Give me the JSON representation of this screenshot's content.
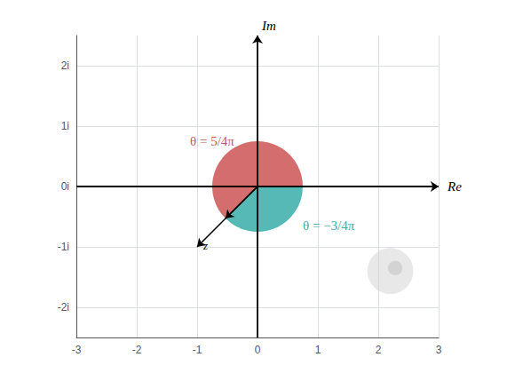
{
  "chart_data": {
    "type": "complex_plane",
    "xlim": [
      -3,
      3
    ],
    "ylim": [
      -2.5,
      2.5
    ],
    "xticks": [
      -3,
      -2,
      -1,
      0,
      1,
      2,
      3
    ],
    "yticks": [
      {
        "value": -2,
        "label": "-2i"
      },
      {
        "value": -1,
        "label": "-1i"
      },
      {
        "value": 0,
        "label": "0i"
      },
      {
        "value": 1,
        "label": "1i"
      },
      {
        "value": 2,
        "label": "2i"
      }
    ],
    "xlabel": "Re",
    "ylabel": "Im",
    "grid": true,
    "sectors": [
      {
        "center": [
          0,
          0
        ],
        "radius": 0.75,
        "theta1": 0,
        "theta2": 225,
        "color": "#cc5555",
        "label": "θ = 5/4π",
        "label_pos": [
          -0.75,
          0.75
        ]
      },
      {
        "center": [
          0,
          0
        ],
        "radius": 0.75,
        "theta1": -135,
        "theta2": 0,
        "color": "#3aada8",
        "label": "θ = −3/4π",
        "label_pos": [
          0.75,
          -0.65
        ]
      }
    ],
    "arrows": [
      {
        "from": [
          0,
          0
        ],
        "angle": -135,
        "length": 0.75,
        "color": "black"
      },
      {
        "from": [
          0,
          0
        ],
        "to": [
          -1.0,
          -1.0
        ],
        "color": "black",
        "label": "z"
      }
    ],
    "circles": [
      {
        "center": [
          2.2,
          -1.4
        ],
        "radius": 0.38,
        "color": "#cccccc"
      },
      {
        "center": [
          2.28,
          -1.35
        ],
        "radius": 0.12,
        "color": "#bbbbbb"
      }
    ]
  }
}
